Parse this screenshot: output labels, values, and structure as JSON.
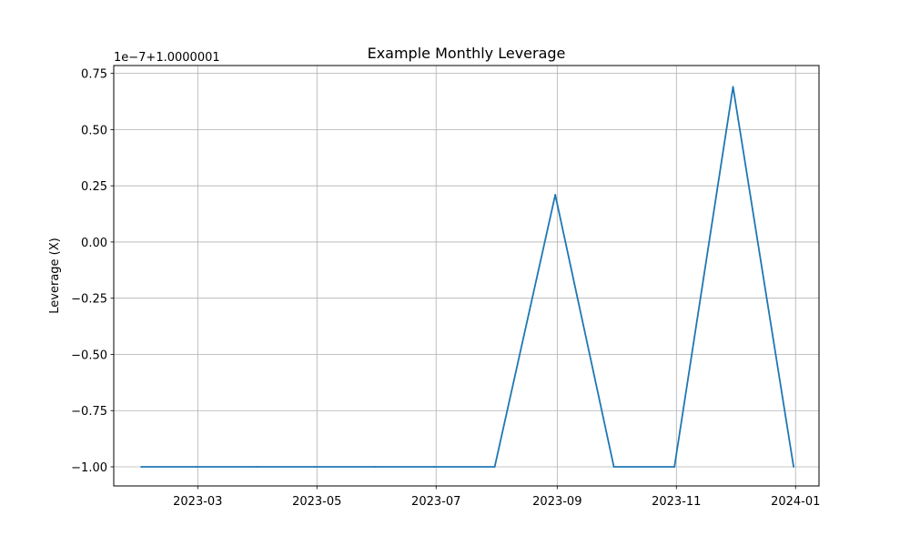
{
  "chart_data": {
    "type": "line",
    "title": "Example Monthly Leverage",
    "xlabel": "",
    "ylabel": "Leverage (X)",
    "y_offset_text": "1e−7+1.0000001",
    "xlim": [
      "2023-01-17",
      "2024-01-13"
    ],
    "ylim": [
      -1.085,
      0.785
    ],
    "grid": true,
    "line_color": "#1f77b4",
    "x_ticks": [
      "2023-03-01",
      "2023-05-01",
      "2023-07-01",
      "2023-09-01",
      "2023-11-01",
      "2024-01-01"
    ],
    "x_tick_labels": [
      "2023-03",
      "2023-05",
      "2023-07",
      "2023-09",
      "2023-11",
      "2024-01"
    ],
    "y_ticks": [
      0.75,
      0.5,
      0.25,
      0.0,
      -0.25,
      -0.5,
      -0.75,
      -1.0
    ],
    "y_tick_labels": [
      "0.75",
      "0.50",
      "0.25",
      "0.00",
      "−0.25",
      "−0.50",
      "−0.75",
      "−1.00"
    ],
    "x": [
      "2023-01-31",
      "2023-02-28",
      "2023-03-31",
      "2023-04-30",
      "2023-05-31",
      "2023-06-30",
      "2023-07-31",
      "2023-08-31",
      "2023-09-30",
      "2023-10-31",
      "2023-11-30",
      "2023-12-31"
    ],
    "series": [
      {
        "values": [
          -1.0,
          -1.0,
          -1.0,
          -1.0,
          -1.0,
          -1.0,
          -1.0,
          0.21,
          -1.0,
          -1.0,
          0.69,
          -1.0
        ]
      }
    ]
  }
}
